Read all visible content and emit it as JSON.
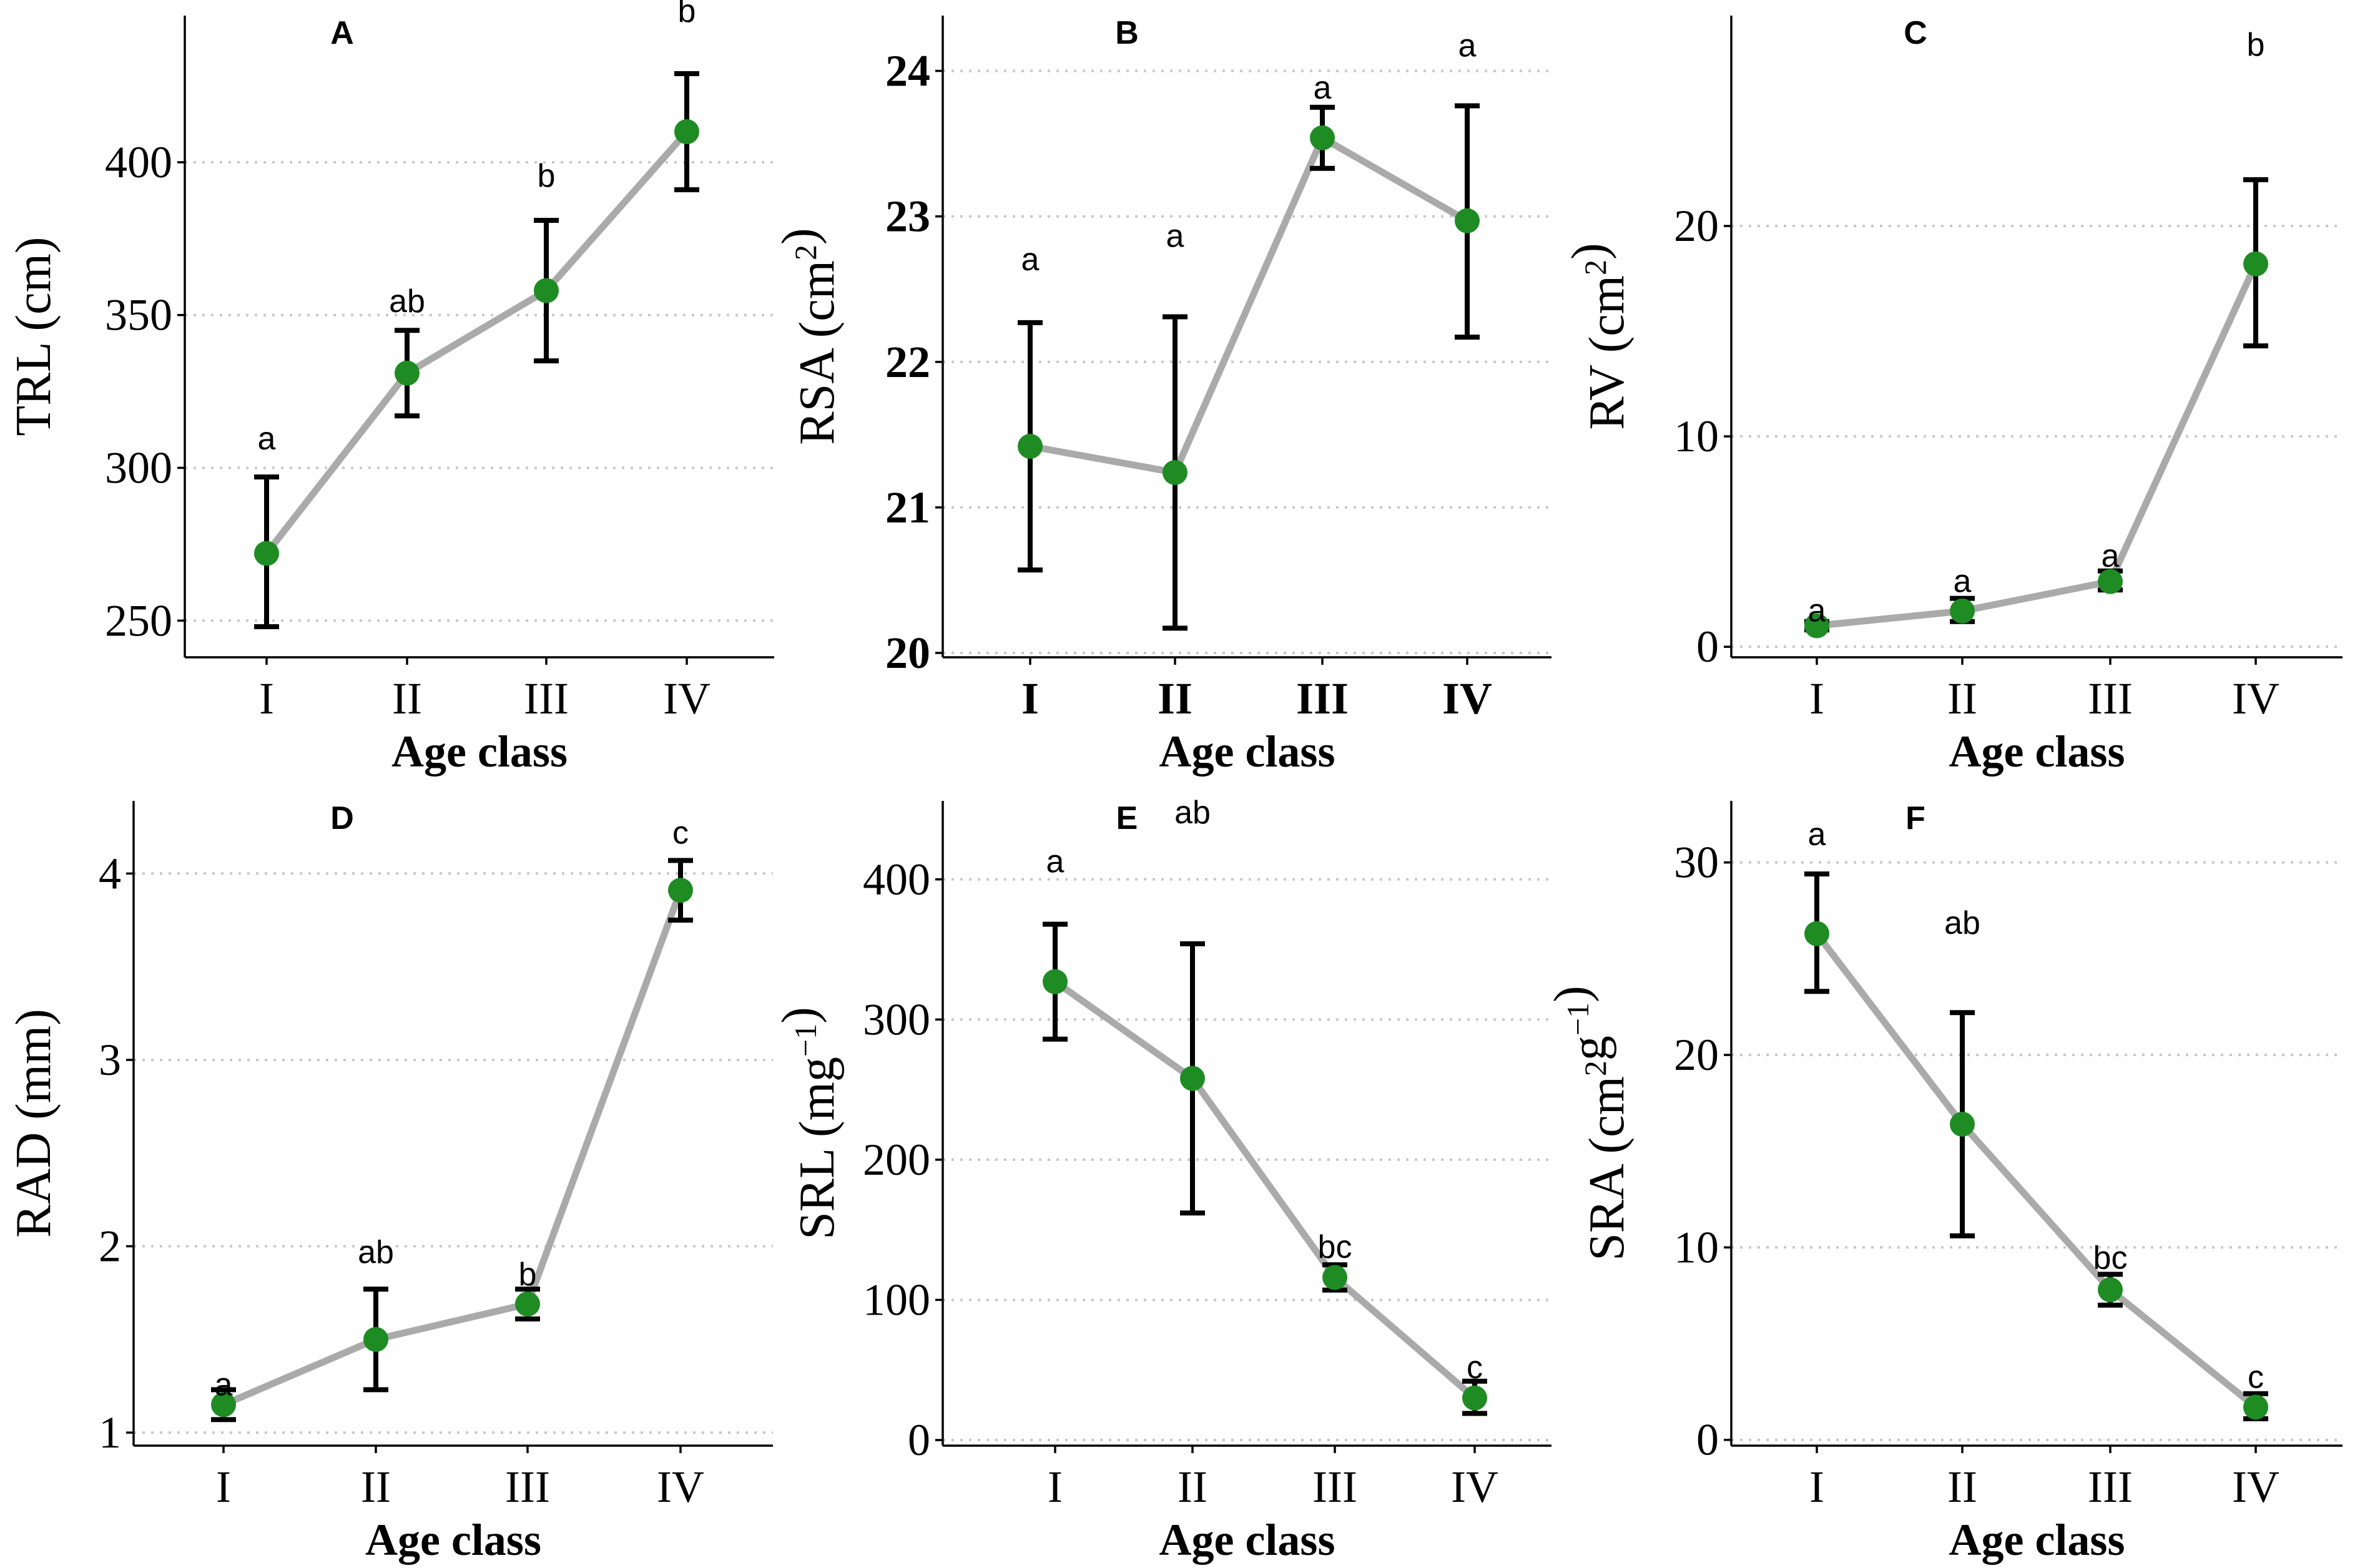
{
  "colors": {
    "point": "#1e8c23",
    "line": "#aaaaaa",
    "errbar": "#000000",
    "grid": "#c8c8c8"
  },
  "chart_data": [
    {
      "panel": "A",
      "type": "line",
      "categories": [
        "I",
        "II",
        "III",
        "IV"
      ],
      "values": [
        272,
        331,
        358,
        410
      ],
      "err_low": [
        248,
        317,
        335,
        391
      ],
      "err_high": [
        297,
        345,
        381,
        429
      ],
      "sig_letters": [
        "a",
        "ab",
        "b",
        "b"
      ],
      "sig_y": [
        306,
        351,
        392,
        446
      ],
      "ylabel": "TRL",
      "ylabel_unit": "(cm)",
      "xlabel": "Age class",
      "ylim": [
        238,
        448
      ],
      "yticks": [
        250,
        300,
        350,
        400
      ],
      "tick_font": "regular"
    },
    {
      "panel": "B",
      "type": "line",
      "categories": [
        "I",
        "II",
        "III",
        "IV"
      ],
      "values": [
        21.42,
        21.24,
        23.54,
        22.97
      ],
      "err_low": [
        20.57,
        20.17,
        23.33,
        22.17
      ],
      "err_high": [
        22.27,
        22.31,
        23.75,
        23.76
      ],
      "sig_letters": [
        "a",
        "a",
        "a",
        "a"
      ],
      "sig_y": [
        22.63,
        22.79,
        23.81,
        24.1
      ],
      "ylabel": "RSA",
      "ylabel_unit": "(cm2)",
      "xlabel": "Age class",
      "ylim": [
        19.97,
        24.38
      ],
      "yticks": [
        20,
        21,
        22,
        23,
        24
      ],
      "tick_font": "bold"
    },
    {
      "panel": "C",
      "type": "line",
      "categories": [
        "I",
        "II",
        "III",
        "IV"
      ],
      "values": [
        1.0,
        1.7,
        3.1,
        18.2
      ],
      "err_low": [
        0.8,
        1.2,
        2.7,
        14.3
      ],
      "err_high": [
        1.2,
        2.3,
        3.6,
        22.2
      ],
      "sig_letters": [
        "a",
        "a",
        "a",
        "b"
      ],
      "sig_y": [
        1.2,
        2.6,
        3.8,
        28.1
      ],
      "ylabel": "RV",
      "ylabel_unit": "(cm2)",
      "xlabel": "Age class",
      "ylim": [
        -0.5,
        30.0
      ],
      "yticks": [
        0,
        10,
        20
      ],
      "tick_font": "regular"
    },
    {
      "panel": "D",
      "type": "line",
      "categories": [
        "I",
        "II",
        "III",
        "IV"
      ],
      "values": [
        1.15,
        1.5,
        1.69,
        3.91
      ],
      "err_low": [
        1.07,
        1.23,
        1.61,
        3.75
      ],
      "err_high": [
        1.23,
        1.77,
        1.77,
        4.07
      ],
      "sig_letters": [
        "a",
        "ab",
        "b",
        "c"
      ],
      "sig_y": [
        1.2,
        1.91,
        1.79,
        4.16
      ],
      "ylabel": "RAD",
      "ylabel_unit": "(mm)",
      "xlabel": "Age class",
      "ylim": [
        0.93,
        4.39
      ],
      "yticks": [
        1,
        2,
        3,
        4
      ],
      "tick_font": "regular"
    },
    {
      "panel": "E",
      "type": "line",
      "categories": [
        "I",
        "II",
        "III",
        "IV"
      ],
      "values": [
        327,
        258,
        116,
        30
      ],
      "err_low": [
        286,
        162,
        107,
        19
      ],
      "err_high": [
        368,
        354,
        125,
        42
      ],
      "sig_letters": [
        "a",
        "ab",
        "bc",
        "c"
      ],
      "sig_y": [
        405,
        440,
        130,
        44
      ],
      "ylabel": "SRL",
      "ylabel_unit": "(mg-1)",
      "xlabel": "Age class",
      "ylim": [
        -4,
        456
      ],
      "yticks": [
        0,
        100,
        200,
        300,
        400
      ],
      "tick_font": "regular"
    },
    {
      "panel": "F",
      "type": "line",
      "categories": [
        "I",
        "II",
        "III",
        "IV"
      ],
      "values": [
        26.3,
        16.4,
        7.8,
        1.7
      ],
      "err_low": [
        23.3,
        10.6,
        7.0,
        1.1
      ],
      "err_high": [
        29.4,
        22.2,
        8.6,
        2.4
      ],
      "sig_letters": [
        "a",
        "ab",
        "bc",
        "c"
      ],
      "sig_y": [
        30.9,
        26.3,
        8.9,
        2.7
      ],
      "ylabel": "SRA",
      "ylabel_unit": "(cm2g-1)",
      "xlabel": "Age class",
      "ylim": [
        -0.3,
        33.2
      ],
      "yticks": [
        0,
        10,
        20,
        30
      ],
      "tick_font": "regular"
    }
  ]
}
